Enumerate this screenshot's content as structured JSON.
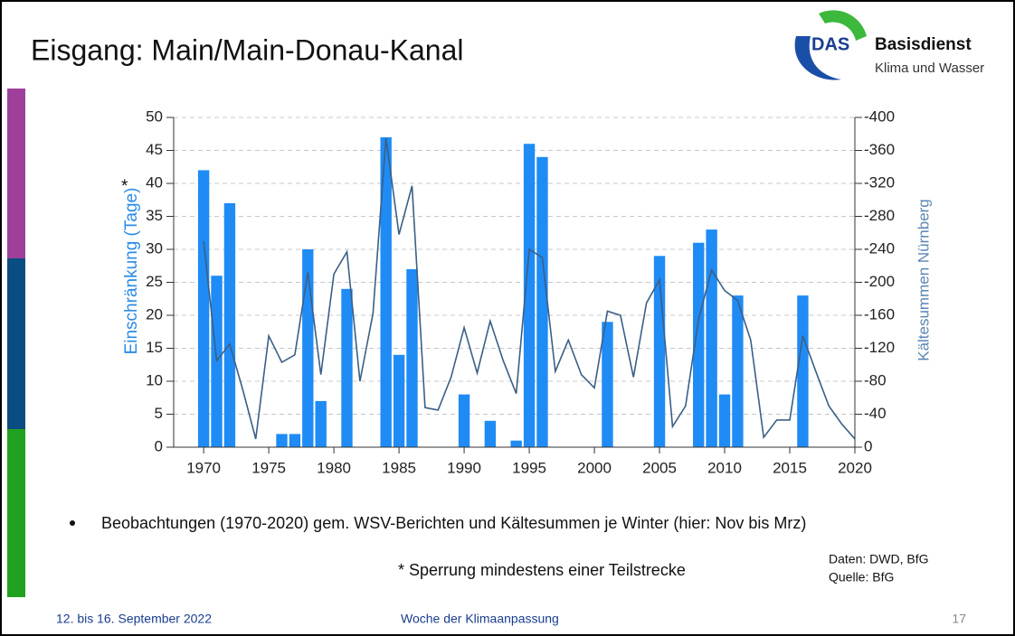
{
  "slide": {
    "title": "Eisgang: Main/Main-Donau-Kanal",
    "logo": {
      "mark": "DAS",
      "name": "Basisdienst",
      "subtitle": "Klima und Wasser"
    },
    "bullet": "Beobachtungen (1970-2020) gem. WSV-Berichten und Kältesummen je Winter (hier: Nov bis Mrz)",
    "footnote": "* Sperrung mindestens einer Teilstrecke",
    "sources": [
      "Daten: DWD, BfG",
      "Quelle: BfG"
    ],
    "footer": {
      "date": "12. bis 16. September 2022",
      "event": "Woche der Klimaanpassung",
      "page": "17"
    }
  },
  "chart_data": {
    "type": "bar",
    "ylabel": "Einschränkung (Tage)",
    "ylabel_note": "*",
    "y2label": "Kältesummen Nürnberg",
    "x": [
      1970,
      1971,
      1972,
      1973,
      1974,
      1975,
      1976,
      1977,
      1978,
      1979,
      1980,
      1981,
      1982,
      1983,
      1984,
      1985,
      1986,
      1987,
      1988,
      1989,
      1990,
      1991,
      1992,
      1993,
      1994,
      1995,
      1996,
      1997,
      1998,
      1999,
      2000,
      2001,
      2002,
      2003,
      2004,
      2005,
      2006,
      2007,
      2008,
      2009,
      2010,
      2011,
      2012,
      2013,
      2014,
      2015,
      2016,
      2017,
      2018,
      2019,
      2020
    ],
    "series": [
      {
        "type": "bar",
        "color": "#1f8bf5",
        "values": [
          42,
          26,
          37,
          0,
          0,
          0,
          2,
          2,
          30,
          7,
          0,
          24,
          0,
          0,
          47,
          14,
          27,
          0,
          0,
          0,
          8,
          0,
          4,
          0,
          1,
          46,
          44,
          0,
          0,
          0,
          0,
          19,
          0,
          0,
          0,
          29,
          0,
          0,
          31,
          33,
          8,
          23,
          0,
          0,
          0,
          0,
          23,
          0,
          0,
          0,
          0
        ]
      },
      {
        "type": "line",
        "color": "#3b5f86",
        "axis": "y2",
        "values": [
          -250,
          -105,
          -125,
          -70,
          -10,
          -135,
          -103,
          -112,
          -212,
          -88,
          -210,
          -237,
          -80,
          -162,
          -375,
          -258,
          -317,
          -48,
          -45,
          -85,
          -145,
          -90,
          -153,
          -105,
          -65,
          -240,
          -230,
          -92,
          -130,
          -88,
          -72,
          -165,
          -160,
          -85,
          -175,
          -203,
          -25,
          -50,
          -155,
          -215,
          -190,
          -178,
          -130,
          -12,
          -33,
          -33,
          -135,
          -92,
          -50,
          -28,
          -10
        ]
      }
    ],
    "xlim": [
      1967.7,
      2020
    ],
    "xticks": [
      1970,
      1975,
      1980,
      1985,
      1990,
      1995,
      2000,
      2005,
      2010,
      2015,
      2020
    ],
    "ylim": [
      0,
      50
    ],
    "yticks": [
      0,
      5,
      10,
      15,
      20,
      25,
      30,
      35,
      40,
      45,
      50
    ],
    "y2lim": [
      0,
      -400
    ],
    "y2ticks": [
      0,
      -40,
      -80,
      -120,
      -160,
      -200,
      -240,
      -280,
      -320,
      -360,
      -400
    ],
    "grid": true
  }
}
